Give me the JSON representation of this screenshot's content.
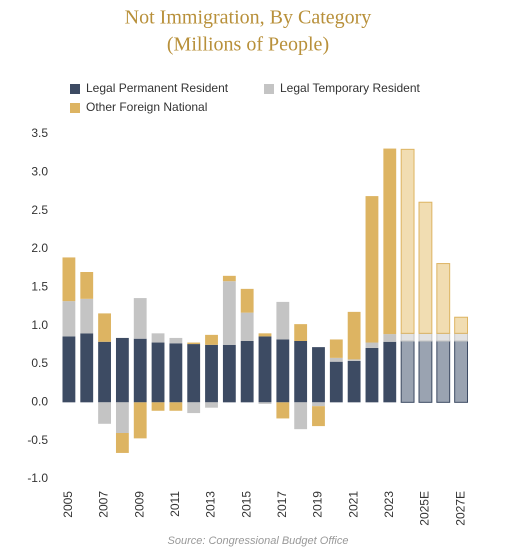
{
  "chart_data": {
    "type": "stacked_bar",
    "title": "Not Immigration, By Category",
    "subtitle": "(Millions of People)",
    "source": "Source: Congressional Budget Office",
    "categories": [
      "2005",
      null,
      "2007",
      null,
      "2009",
      null,
      "2011",
      null,
      "2013",
      null,
      "2015",
      null,
      "2017",
      null,
      "2019",
      null,
      "2021",
      null,
      "2023",
      null,
      "2025E",
      null,
      "2027E"
    ],
    "projected": [
      false,
      false,
      false,
      false,
      false,
      false,
      false,
      false,
      false,
      false,
      false,
      false,
      false,
      false,
      false,
      false,
      false,
      false,
      false,
      true,
      true,
      true,
      true
    ],
    "series": [
      {
        "name": "Legal Permanent Resident",
        "color": "#3d4b63",
        "projection_color": "#9aa3b1",
        "values": [
          0.86,
          0.9,
          0.79,
          0.84,
          0.83,
          0.78,
          0.77,
          0.76,
          0.75,
          0.75,
          0.8,
          0.86,
          0.82,
          0.8,
          0.72,
          0.53,
          0.54,
          0.71,
          0.79,
          0.8,
          0.8,
          0.8,
          0.8
        ]
      },
      {
        "name": "Legal Temporary Resident",
        "color": "#c4c4c4",
        "projection_color": "#e2e2e2",
        "values": [
          0.46,
          0.45,
          -0.28,
          -0.4,
          0.53,
          0.12,
          0.07,
          -0.14,
          -0.07,
          0.83,
          0.37,
          -0.02,
          0.49,
          -0.35,
          -0.05,
          0.05,
          0.02,
          0.07,
          0.1,
          0.1,
          0.1,
          0.1,
          0.1
        ]
      },
      {
        "name": "Other Foreign National",
        "color": "#ddb462",
        "projection_color": "#f1ddb2",
        "values": [
          0.57,
          0.35,
          0.37,
          -0.26,
          -0.47,
          -0.11,
          -0.11,
          0.02,
          0.13,
          0.07,
          0.31,
          0.04,
          -0.21,
          0.22,
          -0.26,
          0.24,
          0.62,
          1.91,
          2.42,
          2.4,
          1.71,
          0.91,
          0.21
        ]
      }
    ],
    "ylim": [
      -1,
      3.5
    ],
    "yticks": [
      {
        "value": -1,
        "label": "-1.0"
      },
      -0.5,
      {
        "value": 0,
        "label": "0.0"
      },
      0.5,
      {
        "value": 1,
        "label": "1.0"
      },
      1.5,
      {
        "value": 2,
        "label": "2.0"
      },
      2.5,
      {
        "value": 3,
        "label": "3.0"
      },
      3.5
    ],
    "grid": false,
    "legend": "top-left"
  }
}
